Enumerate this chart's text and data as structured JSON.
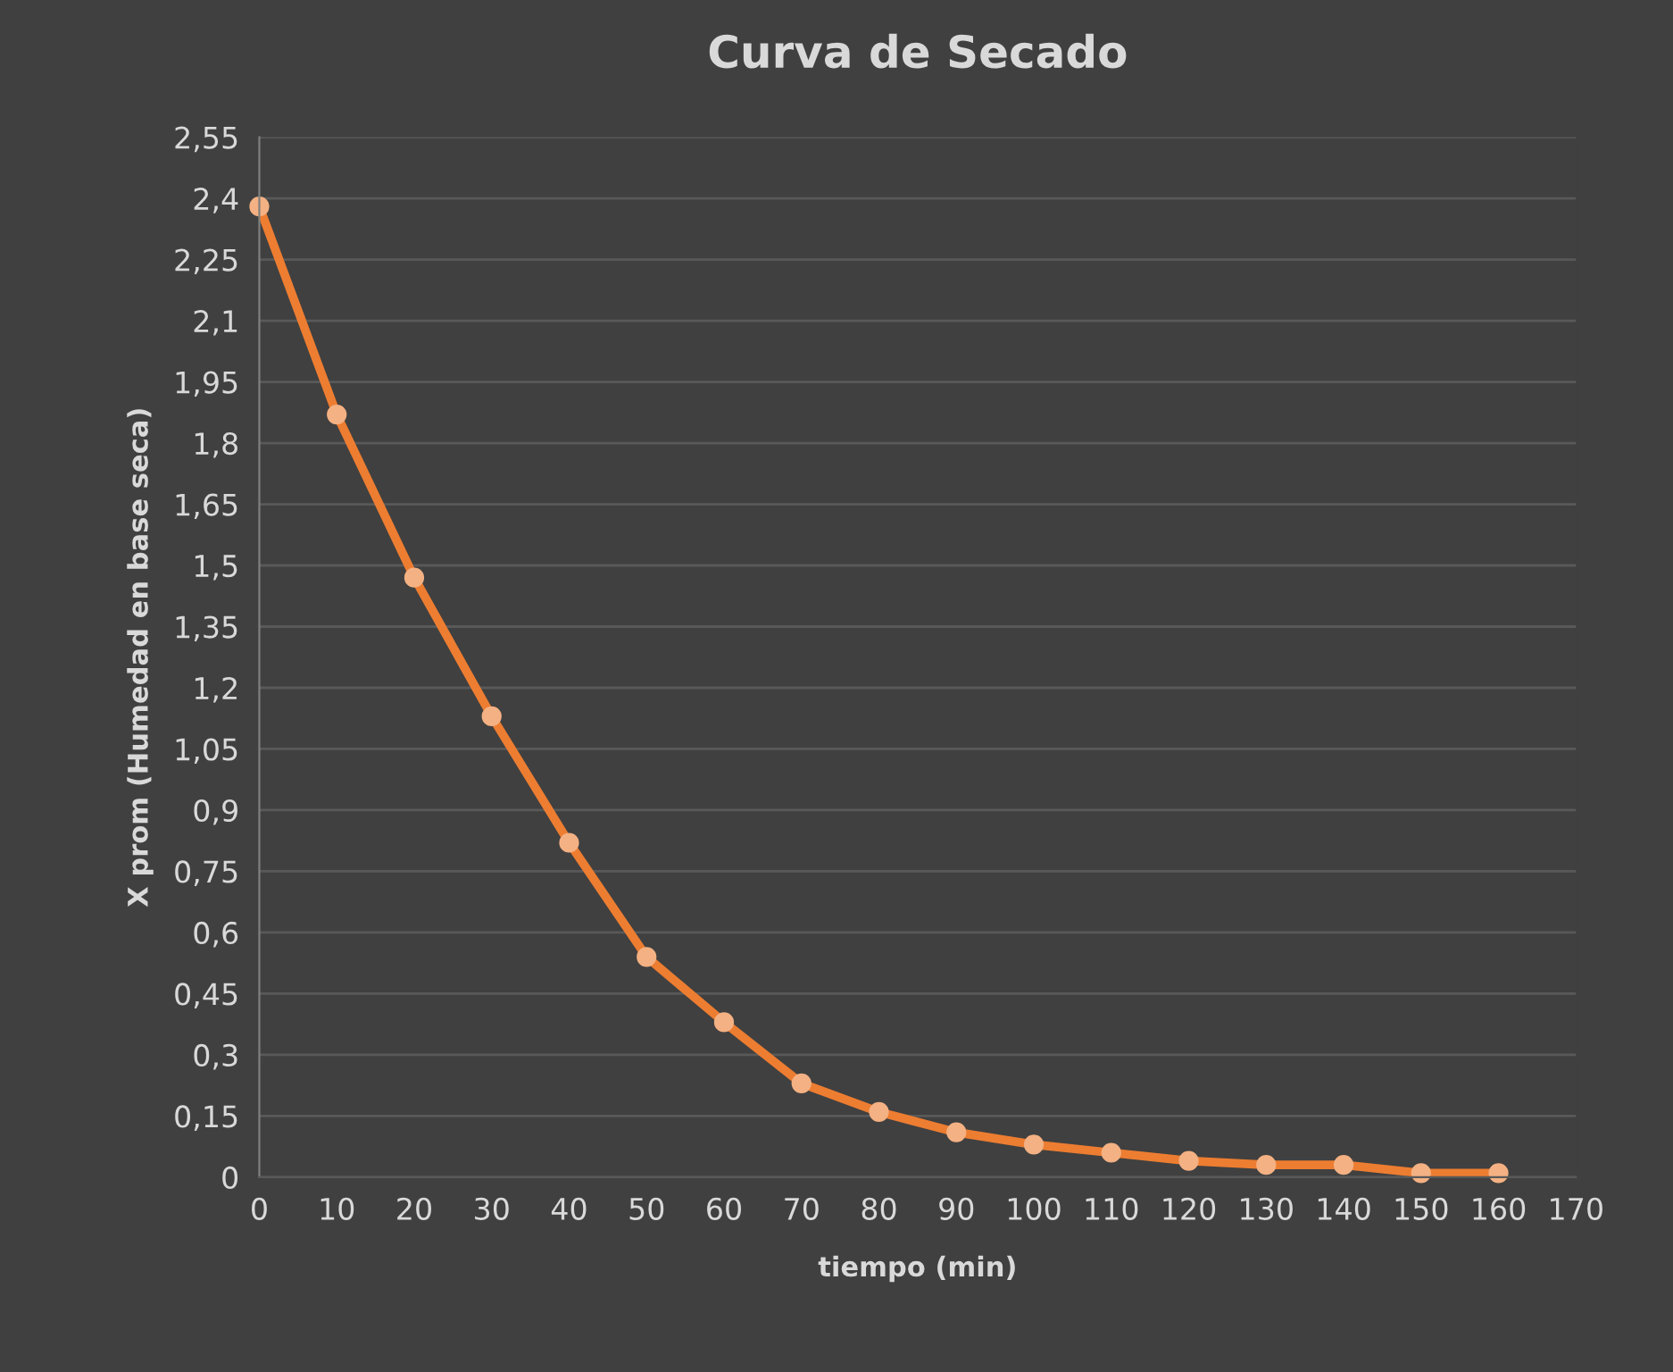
{
  "chart_data": {
    "type": "line",
    "title": "Curva de Secado",
    "xlabel": "tiempo (min)",
    "ylabel": "X prom (Humedad en base seca)",
    "x": [
      0,
      10,
      20,
      30,
      40,
      50,
      60,
      70,
      80,
      90,
      100,
      110,
      120,
      130,
      140,
      150,
      160
    ],
    "series": [
      {
        "color": "#ed7d31",
        "values": [
          2.38,
          1.87,
          1.47,
          1.13,
          0.82,
          0.54,
          0.38,
          0.23,
          0.16,
          0.11,
          0.08,
          0.06,
          0.04,
          0.03,
          0.03,
          0.01,
          0.01
        ]
      }
    ],
    "xlim": [
      0,
      170
    ],
    "xticks": [
      0,
      10,
      20,
      30,
      40,
      50,
      60,
      70,
      80,
      90,
      100,
      110,
      120,
      130,
      140,
      150,
      160,
      170
    ],
    "ylim": [
      0,
      2.55
    ],
    "yticks": [
      {
        "value": 0,
        "label": "0"
      },
      {
        "value": 0.15,
        "label": "0,15"
      },
      {
        "value": 0.3,
        "label": "0,3"
      },
      {
        "value": 0.45,
        "label": "0,45"
      },
      {
        "value": 0.6,
        "label": "0,6"
      },
      {
        "value": 0.75,
        "label": "0,75"
      },
      {
        "value": 0.9,
        "label": "0,9"
      },
      {
        "value": 1.05,
        "label": "1,05"
      },
      {
        "value": 1.2,
        "label": "1,2"
      },
      {
        "value": 1.35,
        "label": "1,35"
      },
      {
        "value": 1.5,
        "label": "1,5"
      },
      {
        "value": 1.65,
        "label": "1,65"
      },
      {
        "value": 1.8,
        "label": "1,8"
      },
      {
        "value": 1.95,
        "label": "1,95"
      },
      {
        "value": 2.1,
        "label": "2,1"
      },
      {
        "value": 2.25,
        "label": "2,25"
      },
      {
        "value": 2.4,
        "label": "2,4"
      },
      {
        "value": 2.55,
        "label": "2,55"
      }
    ],
    "grid": "y",
    "marker": "circle",
    "line_style": "solid"
  }
}
